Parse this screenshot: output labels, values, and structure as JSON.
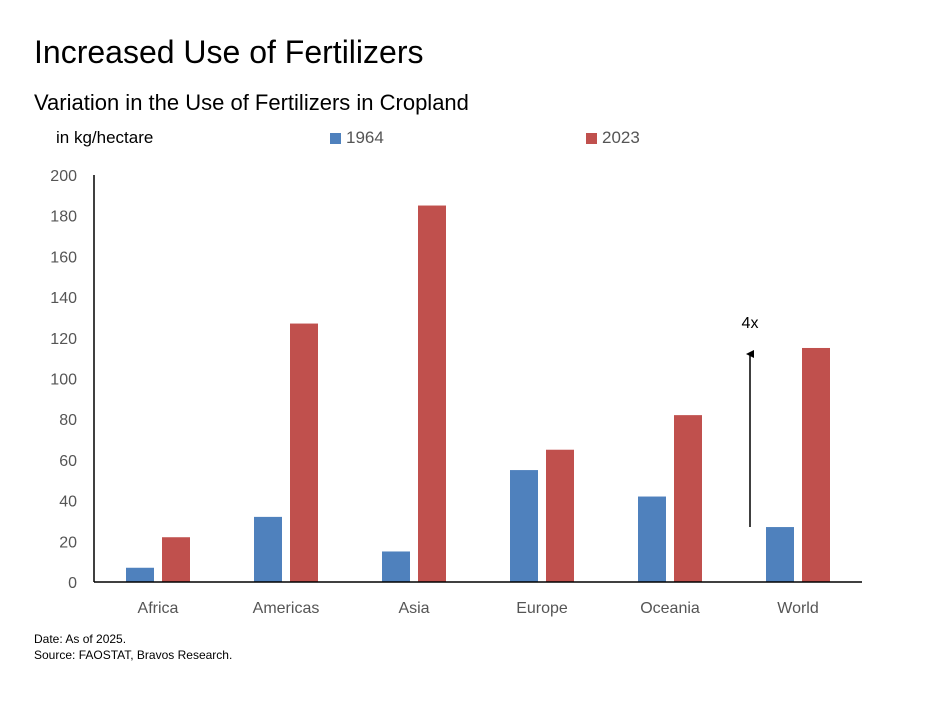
{
  "chart_data": {
    "type": "bar",
    "title": "Increased Use of Fertilizers",
    "subtitle": "Variation in the Use of Fertilizers in Cropland",
    "ylabel": "in kg/hectare",
    "xlabel": "",
    "ylim": [
      0,
      200
    ],
    "yticks": [
      0,
      20,
      40,
      60,
      80,
      100,
      120,
      140,
      160,
      180,
      200
    ],
    "grid": false,
    "legend_position": "top",
    "categories": [
      "Africa",
      "Americas",
      "Asia",
      "Europe",
      "Oceania",
      "World"
    ],
    "series": [
      {
        "name": "1964",
        "color": "#4f81bd",
        "values": [
          7,
          32,
          15,
          55,
          42,
          27
        ]
      },
      {
        "name": "2023",
        "color": "#c0504d",
        "values": [
          22,
          127,
          185,
          65,
          82,
          115
        ]
      }
    ],
    "annotation": {
      "text": "4x",
      "category": "World",
      "from": 27,
      "to": 115
    }
  },
  "footnotes": {
    "date": "Date: As of 2025.",
    "source": "Source: FAOSTAT, Bravos Research."
  }
}
